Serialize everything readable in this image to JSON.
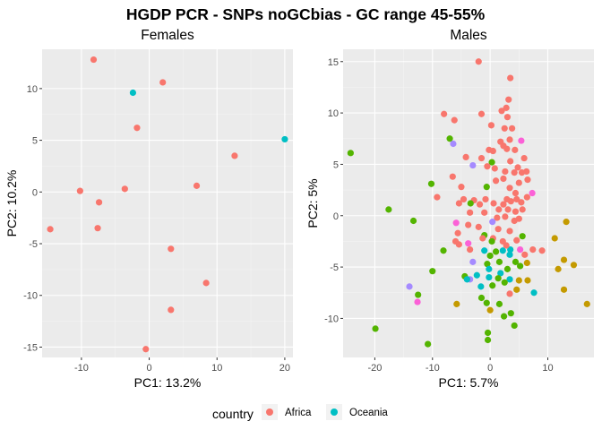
{
  "chart_data": {
    "title": "HGDP PCR - SNPs noGCbias - GC range 45-55%",
    "legend": {
      "title": "country",
      "position": "bottom",
      "entries": [
        {
          "label": "Africa",
          "color": "#F8766D"
        },
        {
          "label": "Oceania",
          "color": "#00BFC4"
        }
      ]
    },
    "extra_colors": {
      "green": "#53B400",
      "gold": "#C49A00",
      "violet": "#A58AFF",
      "magenta": "#FB61D7"
    },
    "panels": [
      {
        "type": "scatter",
        "title": "Females",
        "xlabel": "PC1: 13.2%",
        "ylabel": "PC2: 10.2%",
        "xlim": [
          -15.8,
          21.2
        ],
        "ylim": [
          -16.0,
          13.8
        ],
        "xticks": [
          -10,
          0,
          10,
          20
        ],
        "yticks": [
          -15,
          -10,
          -5,
          0,
          5,
          10
        ],
        "grid": true,
        "points": [
          {
            "x": -8.2,
            "y": 12.8,
            "c": "#F8766D"
          },
          {
            "x": 2.0,
            "y": 10.6,
            "c": "#F8766D"
          },
          {
            "x": -2.4,
            "y": 9.6,
            "c": "#00BFC4"
          },
          {
            "x": -1.8,
            "y": 6.2,
            "c": "#F8766D"
          },
          {
            "x": 20.0,
            "y": 5.1,
            "c": "#00BFC4"
          },
          {
            "x": 12.6,
            "y": 3.5,
            "c": "#F8766D"
          },
          {
            "x": 7.0,
            "y": 0.6,
            "c": "#F8766D"
          },
          {
            "x": -10.2,
            "y": 0.1,
            "c": "#F8766D"
          },
          {
            "x": -3.6,
            "y": 0.3,
            "c": "#F8766D"
          },
          {
            "x": -7.4,
            "y": -1.0,
            "c": "#F8766D"
          },
          {
            "x": -7.6,
            "y": -3.5,
            "c": "#F8766D"
          },
          {
            "x": -14.6,
            "y": -3.6,
            "c": "#F8766D"
          },
          {
            "x": 3.2,
            "y": -5.5,
            "c": "#F8766D"
          },
          {
            "x": 8.4,
            "y": -8.8,
            "c": "#F8766D"
          },
          {
            "x": 3.2,
            "y": -11.4,
            "c": "#F8766D"
          },
          {
            "x": -0.5,
            "y": -15.2,
            "c": "#F8766D"
          }
        ]
      },
      {
        "type": "scatter",
        "title": "Males",
        "xlabel": "PC1: 5.7%",
        "ylabel": "PC2: 5%",
        "xlim": [
          -25.5,
          18.0
        ],
        "ylim": [
          -13.8,
          16.2
        ],
        "xticks": [
          -20,
          -10,
          0,
          10
        ],
        "yticks": [
          -10,
          -5,
          0,
          5,
          10,
          15
        ],
        "grid": true,
        "points": [
          {
            "x": -2.0,
            "y": 15.0,
            "c": "#F8766D"
          },
          {
            "x": 3.5,
            "y": 13.4,
            "c": "#F8766D"
          },
          {
            "x": 3.2,
            "y": 11.3,
            "c": "#F8766D"
          },
          {
            "x": 2.8,
            "y": 10.5,
            "c": "#F8766D"
          },
          {
            "x": 2.0,
            "y": 10.2,
            "c": "#F8766D"
          },
          {
            "x": -8.0,
            "y": 9.9,
            "c": "#F8766D"
          },
          {
            "x": -6.2,
            "y": 9.3,
            "c": "#F8766D"
          },
          {
            "x": -1.5,
            "y": 9.9,
            "c": "#F8766D"
          },
          {
            "x": 3.0,
            "y": 9.6,
            "c": "#F8766D"
          },
          {
            "x": 0.2,
            "y": 8.8,
            "c": "#F8766D"
          },
          {
            "x": 2.5,
            "y": 8.5,
            "c": "#F8766D"
          },
          {
            "x": 3.8,
            "y": 8.5,
            "c": "#F8766D"
          },
          {
            "x": -7.0,
            "y": 7.5,
            "c": "#53B400"
          },
          {
            "x": -6.4,
            "y": 7.0,
            "c": "#A58AFF"
          },
          {
            "x": 1.8,
            "y": 7.2,
            "c": "#F8766D"
          },
          {
            "x": 3.4,
            "y": 7.4,
            "c": "#F8766D"
          },
          {
            "x": 5.4,
            "y": 7.3,
            "c": "#FB61D7"
          },
          {
            "x": 2.3,
            "y": 6.8,
            "c": "#F8766D"
          },
          {
            "x": -0.2,
            "y": 6.4,
            "c": "#F8766D"
          },
          {
            "x": 0.5,
            "y": 6.3,
            "c": "#F8766D"
          },
          {
            "x": 2.9,
            "y": 6.5,
            "c": "#F8766D"
          },
          {
            "x": 4.3,
            "y": 6.4,
            "c": "#F8766D"
          },
          {
            "x": -24.2,
            "y": 6.1,
            "c": "#53B400"
          },
          {
            "x": -4.2,
            "y": 5.7,
            "c": "#F8766D"
          },
          {
            "x": -1.5,
            "y": 5.6,
            "c": "#F8766D"
          },
          {
            "x": 5.9,
            "y": 5.6,
            "c": "#F8766D"
          },
          {
            "x": 0.3,
            "y": 5.2,
            "c": "#53B400"
          },
          {
            "x": 3.5,
            "y": 5.3,
            "c": "#F8766D"
          },
          {
            "x": -3.0,
            "y": 4.9,
            "c": "#A58AFF"
          },
          {
            "x": -0.5,
            "y": 4.8,
            "c": "#F8766D"
          },
          {
            "x": 0.8,
            "y": 4.6,
            "c": "#F8766D"
          },
          {
            "x": 4.8,
            "y": 4.7,
            "c": "#F8766D"
          },
          {
            "x": 2.6,
            "y": 4.3,
            "c": "#F8766D"
          },
          {
            "x": 4.2,
            "y": 4.2,
            "c": "#F8766D"
          },
          {
            "x": 5.5,
            "y": 4.2,
            "c": "#F8766D"
          },
          {
            "x": 6.3,
            "y": 4.3,
            "c": "#F8766D"
          },
          {
            "x": -6.5,
            "y": 3.8,
            "c": "#F8766D"
          },
          {
            "x": 2.3,
            "y": 3.6,
            "c": "#F8766D"
          },
          {
            "x": 1.0,
            "y": 3.4,
            "c": "#F8766D"
          },
          {
            "x": 5.0,
            "y": 3.2,
            "c": "#F8766D"
          },
          {
            "x": 6.5,
            "y": 3.5,
            "c": "#F8766D"
          },
          {
            "x": -10.2,
            "y": 3.1,
            "c": "#53B400"
          },
          {
            "x": -5.0,
            "y": 2.8,
            "c": "#F8766D"
          },
          {
            "x": -0.6,
            "y": 2.8,
            "c": "#53B400"
          },
          {
            "x": 3.4,
            "y": 2.7,
            "c": "#F8766D"
          },
          {
            "x": 4.4,
            "y": 2.2,
            "c": "#F8766D"
          },
          {
            "x": -9.2,
            "y": 1.8,
            "c": "#F8766D"
          },
          {
            "x": -4.6,
            "y": 1.6,
            "c": "#F8766D"
          },
          {
            "x": -0.8,
            "y": 1.6,
            "c": "#F8766D"
          },
          {
            "x": 6.4,
            "y": 1.8,
            "c": "#F8766D"
          },
          {
            "x": 2.9,
            "y": 1.6,
            "c": "#F8766D"
          },
          {
            "x": 4.6,
            "y": 1.6,
            "c": "#F8766D"
          },
          {
            "x": 0.6,
            "y": 1.2,
            "c": "#F8766D"
          },
          {
            "x": 2.3,
            "y": 1.1,
            "c": "#F8766D"
          },
          {
            "x": 3.6,
            "y": 1.4,
            "c": "#F8766D"
          },
          {
            "x": 5.4,
            "y": 1.3,
            "c": "#F8766D"
          },
          {
            "x": -2.8,
            "y": 1.5,
            "c": "#F8766D"
          },
          {
            "x": 7.3,
            "y": 2.2,
            "c": "#FB61D7"
          },
          {
            "x": -3.4,
            "y": 1.2,
            "c": "#53B400"
          },
          {
            "x": -5.4,
            "y": 1.2,
            "c": "#F8766D"
          },
          {
            "x": -1.8,
            "y": 1.1,
            "c": "#F8766D"
          },
          {
            "x": 1.5,
            "y": 0.6,
            "c": "#F8766D"
          },
          {
            "x": 3.1,
            "y": 0.6,
            "c": "#F8766D"
          },
          {
            "x": 4.4,
            "y": 0.4,
            "c": "#F8766D"
          },
          {
            "x": -17.6,
            "y": 0.6,
            "c": "#53B400"
          },
          {
            "x": -3.5,
            "y": 0.3,
            "c": "#F8766D"
          },
          {
            "x": -1.0,
            "y": 0.3,
            "c": "#F8766D"
          },
          {
            "x": 5.6,
            "y": 0.6,
            "c": "#F8766D"
          },
          {
            "x": 1.2,
            "y": -0.2,
            "c": "#F8766D"
          },
          {
            "x": 2.6,
            "y": -0.1,
            "c": "#F8766D"
          },
          {
            "x": 5.0,
            "y": -0.3,
            "c": "#F8766D"
          },
          {
            "x": 0.4,
            "y": -0.6,
            "c": "#A58AFF"
          },
          {
            "x": 4.2,
            "y": -0.5,
            "c": "#F8766D"
          },
          {
            "x": -13.3,
            "y": -0.5,
            "c": "#53B400"
          },
          {
            "x": -5.9,
            "y": -0.7,
            "c": "#FB61D7"
          },
          {
            "x": -3.8,
            "y": -0.9,
            "c": "#F8766D"
          },
          {
            "x": -2.0,
            "y": -1.1,
            "c": "#F8766D"
          },
          {
            "x": 1.4,
            "y": -1.3,
            "c": "#F8766D"
          },
          {
            "x": 3.4,
            "y": -1.5,
            "c": "#F8766D"
          },
          {
            "x": -5.6,
            "y": -1.7,
            "c": "#F8766D"
          },
          {
            "x": -1.0,
            "y": -1.9,
            "c": "#53B400"
          },
          {
            "x": 5.6,
            "y": -2.0,
            "c": "#53B400"
          },
          {
            "x": 0.5,
            "y": -2.2,
            "c": "#F8766D"
          },
          {
            "x": 2.2,
            "y": -2.5,
            "c": "#F8766D"
          },
          {
            "x": 4.6,
            "y": -2.4,
            "c": "#F8766D"
          },
          {
            "x": 13.2,
            "y": -0.6,
            "c": "#C49A00"
          },
          {
            "x": -3.8,
            "y": -2.7,
            "c": "#FB61D7"
          },
          {
            "x": -1.3,
            "y": -2.2,
            "c": "#F8766D"
          },
          {
            "x": -6.0,
            "y": -2.5,
            "c": "#F8766D"
          },
          {
            "x": 0.3,
            "y": -2.5,
            "c": "#53B400"
          },
          {
            "x": -5.4,
            "y": -2.8,
            "c": "#F8766D"
          },
          {
            "x": -1.0,
            "y": -3.4,
            "c": "#00BFC4"
          },
          {
            "x": 1.0,
            "y": -3.5,
            "c": "#53B400"
          },
          {
            "x": 2.2,
            "y": -3.4,
            "c": "#00BFC4"
          },
          {
            "x": 3.5,
            "y": -3.3,
            "c": "#00BFC4"
          },
          {
            "x": 5.2,
            "y": -3.3,
            "c": "#FB61D7"
          },
          {
            "x": 7.4,
            "y": -3.3,
            "c": "#F8766D"
          },
          {
            "x": 9.0,
            "y": -3.4,
            "c": "#F8766D"
          },
          {
            "x": 11.2,
            "y": -2.2,
            "c": "#C49A00"
          },
          {
            "x": 2.8,
            "y": -2.9,
            "c": "#F8766D"
          },
          {
            "x": -3.5,
            "y": -3.3,
            "c": "#F8766D"
          },
          {
            "x": -8.1,
            "y": -3.4,
            "c": "#53B400"
          },
          {
            "x": 0.0,
            "y": -3.9,
            "c": "#53B400"
          },
          {
            "x": 3.4,
            "y": -3.8,
            "c": "#00BFC4"
          },
          {
            "x": 6.0,
            "y": -3.8,
            "c": "#F8766D"
          },
          {
            "x": 14.5,
            "y": -4.8,
            "c": "#C49A00"
          },
          {
            "x": 12.8,
            "y": -4.3,
            "c": "#C49A00"
          },
          {
            "x": -3.0,
            "y": -4.5,
            "c": "#A58AFF"
          },
          {
            "x": -0.5,
            "y": -4.7,
            "c": "#53B400"
          },
          {
            "x": 1.6,
            "y": -4.5,
            "c": "#53B400"
          },
          {
            "x": 4.4,
            "y": -4.5,
            "c": "#53B400"
          },
          {
            "x": 5.2,
            "y": -4.9,
            "c": "#53B400"
          },
          {
            "x": 6.4,
            "y": -4.6,
            "c": "#C49A00"
          },
          {
            "x": 11.8,
            "y": -5.2,
            "c": "#C49A00"
          },
          {
            "x": -0.2,
            "y": -5.2,
            "c": "#00BFC4"
          },
          {
            "x": 3.0,
            "y": -5.2,
            "c": "#53B400"
          },
          {
            "x": -10.0,
            "y": -5.4,
            "c": "#53B400"
          },
          {
            "x": 1.8,
            "y": -5.6,
            "c": "#00BFC4"
          },
          {
            "x": -2.3,
            "y": -5.8,
            "c": "#00BFC4"
          },
          {
            "x": -4.4,
            "y": -5.9,
            "c": "#53B400"
          },
          {
            "x": -3.5,
            "y": -6.2,
            "c": "#A58AFF"
          },
          {
            "x": -4.0,
            "y": -6.2,
            "c": "#00BFC4"
          },
          {
            "x": -0.2,
            "y": -6.0,
            "c": "#00BFC4"
          },
          {
            "x": 1.4,
            "y": -6.1,
            "c": "#53B400"
          },
          {
            "x": 3.4,
            "y": -6.2,
            "c": "#00BFC4"
          },
          {
            "x": 5.0,
            "y": -6.3,
            "c": "#C49A00"
          },
          {
            "x": 6.5,
            "y": -6.3,
            "c": "#C49A00"
          },
          {
            "x": 2.5,
            "y": -6.5,
            "c": "#53B400"
          },
          {
            "x": -1.6,
            "y": -6.9,
            "c": "#00BFC4"
          },
          {
            "x": 0.4,
            "y": -6.8,
            "c": "#53B400"
          },
          {
            "x": -14.0,
            "y": -6.9,
            "c": "#A58AFF"
          },
          {
            "x": 4.6,
            "y": -7.2,
            "c": "#C49A00"
          },
          {
            "x": 12.8,
            "y": -7.2,
            "c": "#C49A00"
          },
          {
            "x": 7.6,
            "y": -7.5,
            "c": "#00BFC4"
          },
          {
            "x": -12.5,
            "y": -7.7,
            "c": "#53B400"
          },
          {
            "x": 3.4,
            "y": -7.6,
            "c": "#F8766D"
          },
          {
            "x": -1.5,
            "y": -8.0,
            "c": "#53B400"
          },
          {
            "x": -12.6,
            "y": -8.4,
            "c": "#FB61D7"
          },
          {
            "x": -5.8,
            "y": -8.6,
            "c": "#C49A00"
          },
          {
            "x": -0.6,
            "y": -8.5,
            "c": "#53B400"
          },
          {
            "x": 1.6,
            "y": -8.6,
            "c": "#53B400"
          },
          {
            "x": 16.8,
            "y": -8.6,
            "c": "#C49A00"
          },
          {
            "x": 0.0,
            "y": -9.2,
            "c": "#C49A00"
          },
          {
            "x": 3.6,
            "y": -9.5,
            "c": "#53B400"
          },
          {
            "x": 2.4,
            "y": -9.8,
            "c": "#53B400"
          },
          {
            "x": 4.2,
            "y": -10.7,
            "c": "#53B400"
          },
          {
            "x": -19.9,
            "y": -11.0,
            "c": "#53B400"
          },
          {
            "x": -0.4,
            "y": -11.4,
            "c": "#53B400"
          },
          {
            "x": -0.4,
            "y": -12.1,
            "c": "#53B400"
          },
          {
            "x": -10.8,
            "y": -12.5,
            "c": "#53B400"
          }
        ]
      }
    ]
  }
}
